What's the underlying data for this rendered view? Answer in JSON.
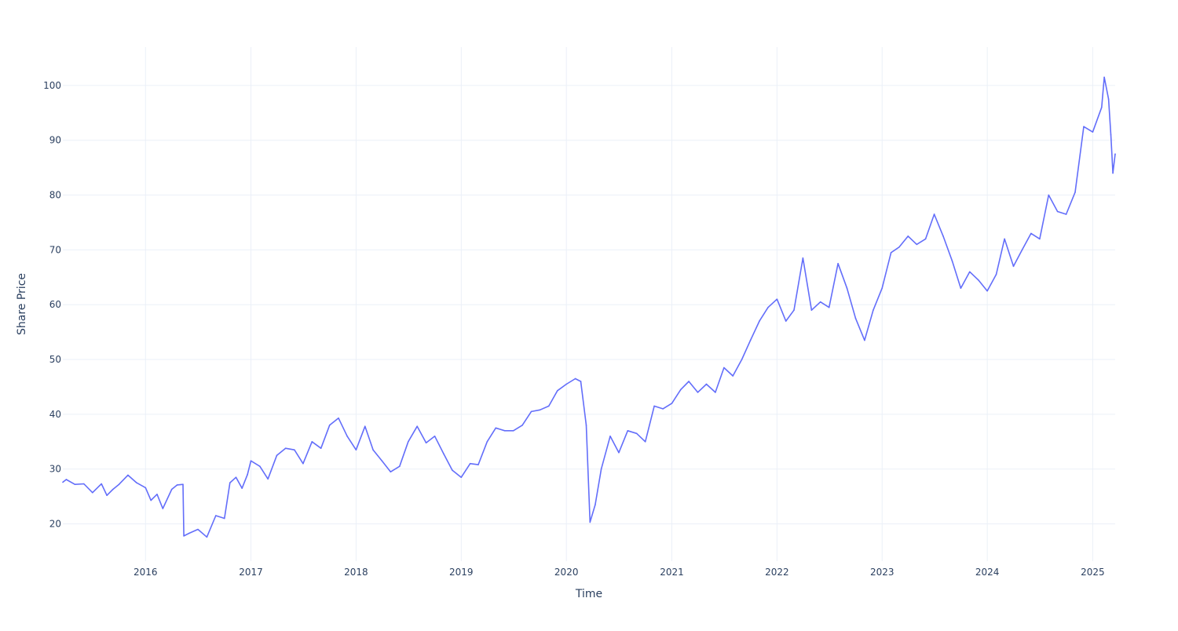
{
  "chart_data": {
    "type": "line",
    "title": "",
    "xlabel": "Time",
    "ylabel": "Share Price",
    "x_range": [
      "2015-03-20",
      "2025-03-20"
    ],
    "ylim": [
      13.2,
      107
    ],
    "x_ticks": [
      "2016",
      "2017",
      "2018",
      "2019",
      "2020",
      "2021",
      "2022",
      "2023",
      "2024",
      "2025"
    ],
    "y_ticks": [
      20,
      30,
      40,
      50,
      60,
      70,
      80,
      90,
      100
    ],
    "grid": true,
    "legend": "none",
    "series": [
      {
        "color": "#636efa",
        "points": [
          [
            "2015-03-20",
            27.6
          ],
          [
            "2015-04-01",
            28.1
          ],
          [
            "2015-05-01",
            27.2
          ],
          [
            "2015-06-01",
            27.3
          ],
          [
            "2015-07-01",
            25.7
          ],
          [
            "2015-08-01",
            27.3
          ],
          [
            "2015-08-20",
            25.2
          ],
          [
            "2015-09-10",
            26.3
          ],
          [
            "2015-10-01",
            27.2
          ],
          [
            "2015-11-01",
            28.9
          ],
          [
            "2015-12-01",
            27.5
          ],
          [
            "2016-01-01",
            26.6
          ],
          [
            "2016-01-20",
            24.3
          ],
          [
            "2016-02-10",
            25.4
          ],
          [
            "2016-03-01",
            22.8
          ],
          [
            "2016-04-01",
            26.3
          ],
          [
            "2016-04-20",
            27.1
          ],
          [
            "2016-05-10",
            27.2
          ],
          [
            "2016-05-13",
            17.8
          ],
          [
            "2016-06-01",
            18.3
          ],
          [
            "2016-07-01",
            19.0
          ],
          [
            "2016-08-01",
            17.6
          ],
          [
            "2016-09-01",
            21.5
          ],
          [
            "2016-10-01",
            21.0
          ],
          [
            "2016-10-20",
            27.5
          ],
          [
            "2016-11-10",
            28.5
          ],
          [
            "2016-12-01",
            26.5
          ],
          [
            "2016-12-20",
            29.0
          ],
          [
            "2017-01-01",
            31.5
          ],
          [
            "2017-02-01",
            30.5
          ],
          [
            "2017-03-01",
            28.2
          ],
          [
            "2017-04-01",
            32.5
          ],
          [
            "2017-05-01",
            33.8
          ],
          [
            "2017-06-01",
            33.5
          ],
          [
            "2017-07-01",
            31.0
          ],
          [
            "2017-08-01",
            35.0
          ],
          [
            "2017-09-01",
            33.8
          ],
          [
            "2017-10-01",
            38.0
          ],
          [
            "2017-11-01",
            39.3
          ],
          [
            "2017-12-01",
            36.0
          ],
          [
            "2018-01-01",
            33.5
          ],
          [
            "2018-02-01",
            37.8
          ],
          [
            "2018-03-01",
            33.5
          ],
          [
            "2018-04-01",
            31.5
          ],
          [
            "2018-05-01",
            29.5
          ],
          [
            "2018-06-01",
            30.5
          ],
          [
            "2018-07-01",
            35.0
          ],
          [
            "2018-08-01",
            37.8
          ],
          [
            "2018-09-01",
            34.8
          ],
          [
            "2018-10-01",
            36.0
          ],
          [
            "2018-11-01",
            32.8
          ],
          [
            "2018-12-01",
            29.8
          ],
          [
            "2019-01-01",
            28.5
          ],
          [
            "2019-02-01",
            31.0
          ],
          [
            "2019-03-01",
            30.8
          ],
          [
            "2019-04-01",
            35.0
          ],
          [
            "2019-05-01",
            37.5
          ],
          [
            "2019-06-01",
            37.0
          ],
          [
            "2019-07-01",
            37.0
          ],
          [
            "2019-08-01",
            38.0
          ],
          [
            "2019-09-01",
            40.5
          ],
          [
            "2019-10-01",
            40.8
          ],
          [
            "2019-11-01",
            41.5
          ],
          [
            "2019-12-01",
            44.3
          ],
          [
            "2020-01-01",
            45.5
          ],
          [
            "2020-02-01",
            46.5
          ],
          [
            "2020-02-20",
            46.0
          ],
          [
            "2020-03-10",
            38.0
          ],
          [
            "2020-03-23",
            20.3
          ],
          [
            "2020-04-10",
            23.5
          ],
          [
            "2020-05-01",
            30.0
          ],
          [
            "2020-06-01",
            36.0
          ],
          [
            "2020-07-01",
            33.0
          ],
          [
            "2020-08-01",
            37.0
          ],
          [
            "2020-09-01",
            36.5
          ],
          [
            "2020-10-01",
            35.0
          ],
          [
            "2020-11-01",
            41.5
          ],
          [
            "2020-12-01",
            41.0
          ],
          [
            "2021-01-01",
            42.0
          ],
          [
            "2021-02-01",
            44.5
          ],
          [
            "2021-03-01",
            46.0
          ],
          [
            "2021-04-01",
            44.0
          ],
          [
            "2021-05-01",
            45.5
          ],
          [
            "2021-06-01",
            44.0
          ],
          [
            "2021-07-01",
            48.5
          ],
          [
            "2021-08-01",
            47.0
          ],
          [
            "2021-09-01",
            50.0
          ],
          [
            "2021-10-01",
            53.5
          ],
          [
            "2021-11-01",
            57.0
          ],
          [
            "2021-12-01",
            59.5
          ],
          [
            "2022-01-01",
            61.0
          ],
          [
            "2022-02-01",
            57.0
          ],
          [
            "2022-03-01",
            59.0
          ],
          [
            "2022-04-01",
            68.5
          ],
          [
            "2022-05-01",
            59.0
          ],
          [
            "2022-06-01",
            60.5
          ],
          [
            "2022-07-01",
            59.5
          ],
          [
            "2022-08-01",
            67.5
          ],
          [
            "2022-09-01",
            63.0
          ],
          [
            "2022-10-01",
            57.5
          ],
          [
            "2022-11-01",
            53.5
          ],
          [
            "2022-12-01",
            59.0
          ],
          [
            "2023-01-01",
            63.0
          ],
          [
            "2023-02-01",
            69.5
          ],
          [
            "2023-03-01",
            70.5
          ],
          [
            "2023-04-01",
            72.5
          ],
          [
            "2023-05-01",
            71.0
          ],
          [
            "2023-06-01",
            72.0
          ],
          [
            "2023-07-01",
            76.5
          ],
          [
            "2023-08-01",
            72.5
          ],
          [
            "2023-09-01",
            68.0
          ],
          [
            "2023-10-01",
            63.0
          ],
          [
            "2023-11-01",
            66.0
          ],
          [
            "2023-12-01",
            64.5
          ],
          [
            "2024-01-01",
            62.5
          ],
          [
            "2024-02-01",
            65.5
          ],
          [
            "2024-03-01",
            72.0
          ],
          [
            "2024-04-01",
            67.0
          ],
          [
            "2024-05-01",
            70.0
          ],
          [
            "2024-06-01",
            73.0
          ],
          [
            "2024-07-01",
            72.0
          ],
          [
            "2024-08-01",
            80.0
          ],
          [
            "2024-09-01",
            77.0
          ],
          [
            "2024-10-01",
            76.5
          ],
          [
            "2024-11-01",
            80.5
          ],
          [
            "2024-12-01",
            92.5
          ],
          [
            "2025-01-01",
            91.5
          ],
          [
            "2025-02-01",
            96.0
          ],
          [
            "2025-02-10",
            101.5
          ],
          [
            "2025-02-25",
            97.5
          ],
          [
            "2025-03-05",
            91.0
          ],
          [
            "2025-03-12",
            84.0
          ],
          [
            "2025-03-20",
            87.5
          ]
        ]
      }
    ]
  }
}
